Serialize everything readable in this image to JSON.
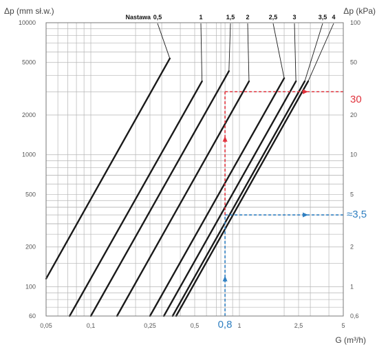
{
  "chart_data": {
    "type": "line",
    "title": "",
    "xlabel": "G (m³/h)",
    "ylabel_left": "Δp (mm sł.w.)",
    "ylabel_right": "Δp (kPa)",
    "xscale": "log",
    "yscale": "log",
    "xlim": [
      0.05,
      5
    ],
    "ylim": [
      60,
      10000
    ],
    "grid": true,
    "x_tick_labels": [
      "0,05",
      "0,1",
      "0,25",
      "0,5",
      "1",
      "2,5",
      "5"
    ],
    "x_tick_values": [
      0.05,
      0.1,
      0.25,
      0.5,
      1,
      2.5,
      5
    ],
    "y_left_tick_labels": [
      "60",
      "100",
      "200",
      "500",
      "1000",
      "2000",
      "5000",
      "10000"
    ],
    "y_left_tick_values": [
      60,
      100,
      200,
      500,
      1000,
      2000,
      5000,
      10000
    ],
    "y_right_tick_labels": [
      "0,6",
      "1",
      "2",
      "5",
      "10",
      "20",
      "50",
      "100"
    ],
    "legend_title": "Nastawa",
    "series": [
      {
        "name": "0,5",
        "x": [
          0.05,
          0.34
        ],
        "y": [
          115,
          5360
        ]
      },
      {
        "name": "1",
        "x": [
          0.072,
          0.56
        ],
        "y": [
          60,
          3600
        ]
      },
      {
        "name": "1,5",
        "x": [
          0.1,
          0.85
        ],
        "y": [
          60,
          4300
        ]
      },
      {
        "name": "2",
        "x": [
          0.15,
          1.16
        ],
        "y": [
          60,
          3600
        ]
      },
      {
        "name": "2,5",
        "x": [
          0.25,
          2.0
        ],
        "y": [
          60,
          3800
        ]
      },
      {
        "name": "3",
        "x": [
          0.31,
          2.4
        ],
        "y": [
          60,
          3600
        ]
      },
      {
        "name": "3,5",
        "x": [
          0.355,
          2.75
        ],
        "y": [
          60,
          3600
        ]
      },
      {
        "name": "4",
        "x": [
          0.375,
          2.9
        ],
        "y": [
          60,
          3600
        ]
      }
    ],
    "annotations": {
      "flow_value": "0,8",
      "flow_x": 0.8,
      "red_result": "30",
      "red_y": 3000,
      "blue_result": "≈3,5",
      "blue_y": 350
    }
  },
  "colors": {
    "curve": "#1a1a1a",
    "grid": "#b5b5b5",
    "red": "#e0323c",
    "blue": "#2f7fc1"
  }
}
